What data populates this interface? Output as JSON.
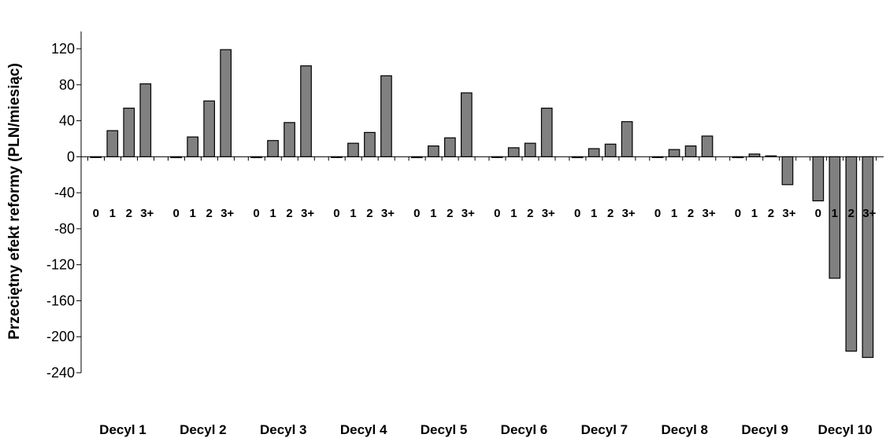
{
  "chart_data": {
    "type": "bar",
    "ylabel": "Przeciętny efekt reformy (PLN/miesiąc)",
    "xlabel": "",
    "ylim": [
      -240,
      120
    ],
    "yticks": [
      120,
      80,
      40,
      0,
      -40,
      -80,
      -120,
      -160,
      -200,
      -240
    ],
    "grid": false,
    "legend": "none",
    "bar_color": "#808080",
    "groups": [
      "Decyl 1",
      "Decyl 2",
      "Decyl 3",
      "Decyl 4",
      "Decyl 5",
      "Decyl 6",
      "Decyl 7",
      "Decyl 8",
      "Decyl 9",
      "Decyl 10"
    ],
    "subcategories": [
      "0",
      "1",
      "2",
      "3+"
    ],
    "values": [
      [
        0,
        29,
        54,
        81
      ],
      [
        -1,
        22,
        62,
        119
      ],
      [
        -1,
        18,
        38,
        101
      ],
      [
        0,
        15,
        27,
        90
      ],
      [
        -1,
        12,
        21,
        71
      ],
      [
        0,
        10,
        15,
        54
      ],
      [
        -1,
        9,
        14,
        39
      ],
      [
        0,
        8,
        12,
        23
      ],
      [
        -1,
        3,
        1,
        -31
      ],
      [
        -49,
        -135,
        -216,
        -223
      ]
    ]
  }
}
